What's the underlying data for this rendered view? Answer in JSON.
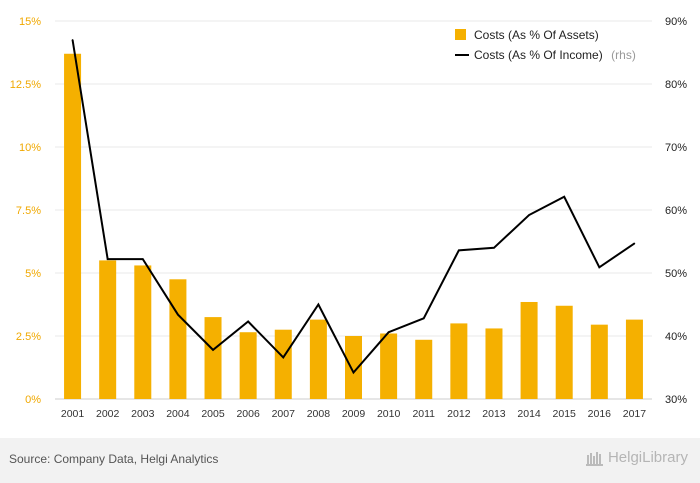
{
  "chart_data": {
    "type": "bar",
    "categories": [
      "2001",
      "2002",
      "2003",
      "2004",
      "2005",
      "2006",
      "2007",
      "2008",
      "2009",
      "2010",
      "2011",
      "2012",
      "2013",
      "2014",
      "2015",
      "2016",
      "2017"
    ],
    "series": [
      {
        "name": "Costs (As % Of Assets)",
        "type": "bar",
        "axis": "left",
        "color": "#f5b000",
        "values": [
          13.7,
          5.5,
          5.3,
          4.75,
          3.25,
          2.65,
          2.75,
          3.15,
          2.5,
          2.6,
          2.35,
          3.0,
          2.8,
          3.85,
          3.7,
          2.95,
          3.15
        ]
      },
      {
        "name": "Costs (As % Of Income)",
        "type": "line",
        "axis": "right",
        "color": "#000000",
        "values": [
          87.0,
          52.2,
          52.2,
          43.4,
          37.8,
          42.3,
          36.6,
          45.0,
          34.2,
          40.6,
          42.8,
          53.6,
          54.0,
          59.2,
          62.1,
          50.9,
          54.7
        ]
      }
    ],
    "left_axis": {
      "ylim": [
        0,
        15
      ],
      "ticks": [
        "0%",
        "2.5%",
        "5%",
        "7.5%",
        "10%",
        "12.5%",
        "15%"
      ]
    },
    "right_axis": {
      "ylim": [
        30,
        90
      ],
      "ticks": [
        "30%",
        "40%",
        "50%",
        "60%",
        "70%",
        "80%",
        "90%"
      ]
    },
    "legend": {
      "position": "top-right",
      "rhs_suffix": "(rhs)"
    },
    "grid": true
  },
  "footer": {
    "source": "Source: Company Data, Helgi Analytics",
    "brand": "HelgiLibrary"
  }
}
